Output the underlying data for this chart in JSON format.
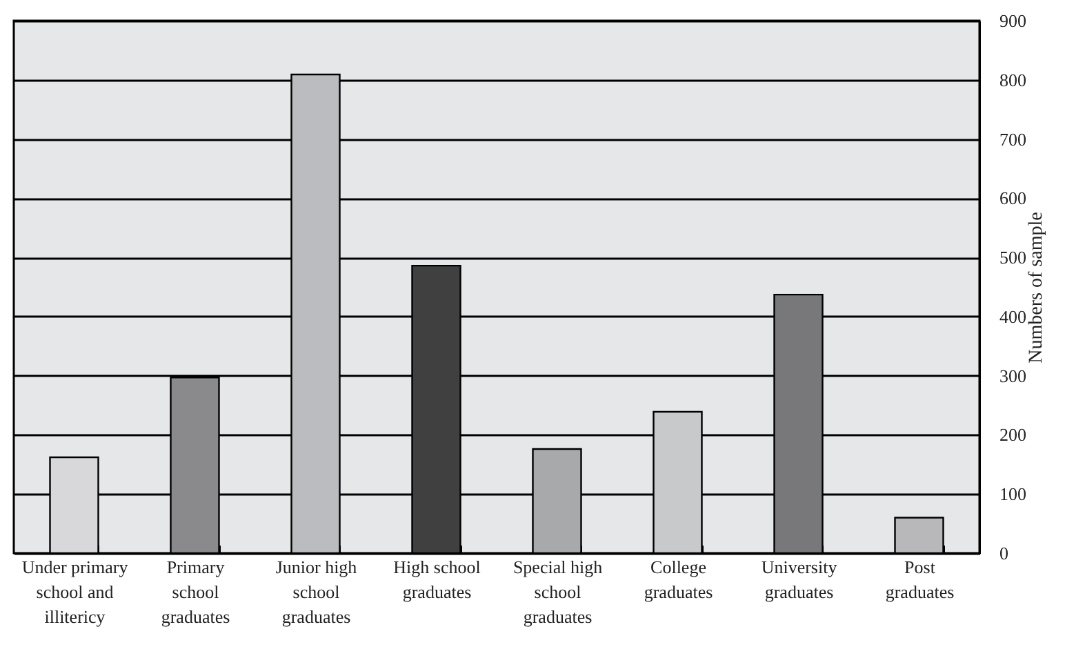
{
  "chart_data": {
    "type": "bar",
    "ylabel": "Numbers of sample",
    "categories": [
      "Under primary\nschool and\nillitericy",
      "Primary\nschool\ngraduates",
      "Junior high\nschool\ngraduates",
      "High school\ngraduates",
      "Special high\nschool\ngraduates",
      "College\ngraduates",
      "University\ngraduates",
      "Post\ngraduates"
    ],
    "values": [
      162,
      297,
      809,
      486,
      176,
      239,
      437,
      60
    ],
    "colors": [
      "#d8d8da",
      "#8a8a8c",
      "#bbbcc0",
      "#404040",
      "#a8a9ab",
      "#c8c9cb",
      "#78787b",
      "#b8b8ba"
    ],
    "ylim": [
      0,
      900
    ],
    "yticks": [
      0,
      100,
      200,
      300,
      400,
      500,
      600,
      700,
      800,
      900
    ],
    "grid": "y"
  }
}
